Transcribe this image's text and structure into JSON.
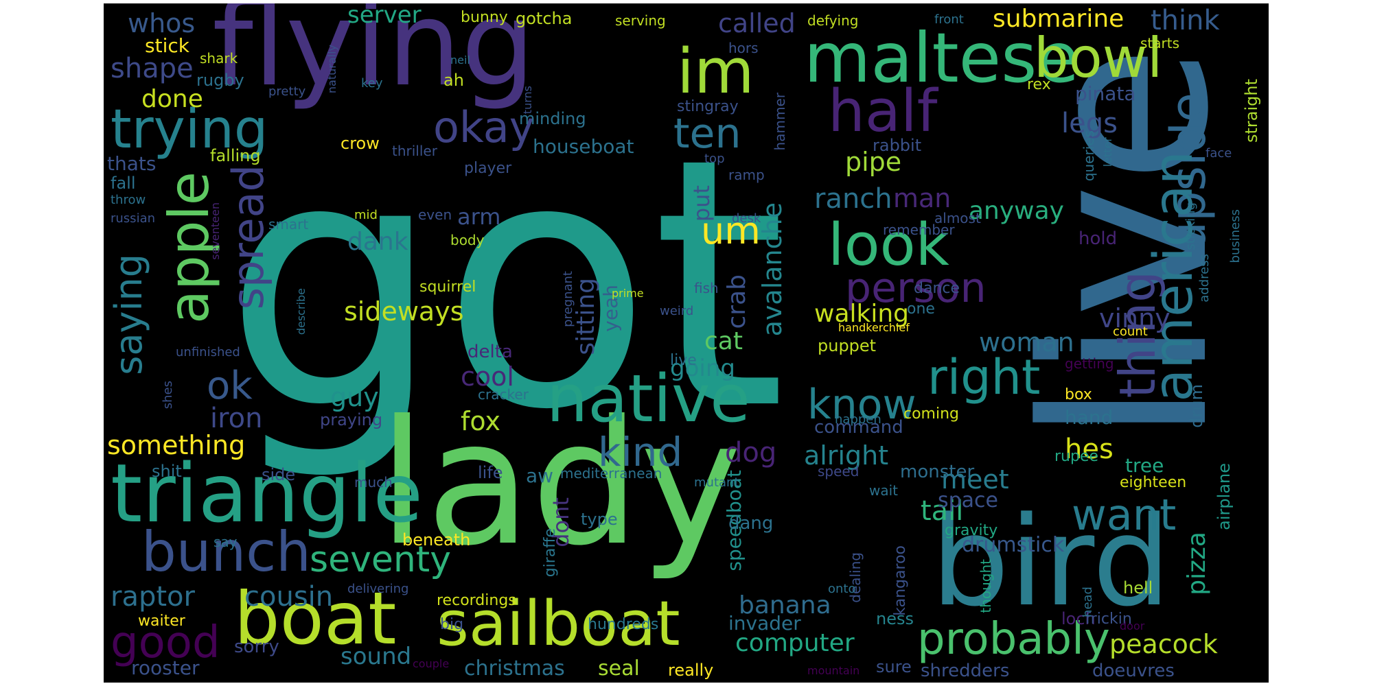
{
  "words": [
    {
      "text": "got",
      "color": "#1f9a8a"
    },
    {
      "text": "live",
      "color": "#31688e"
    },
    {
      "text": "lady",
      "color": "#5ec962"
    },
    {
      "text": "flying",
      "color": "#46337e"
    },
    {
      "text": "bird",
      "color": "#2b7d8e"
    },
    {
      "text": "triangle",
      "color": "#25a085"
    },
    {
      "text": "maltese",
      "color": "#35b779"
    },
    {
      "text": "sailboat",
      "color": "#b5de2b"
    },
    {
      "text": "boat",
      "color": "#b5de2b"
    },
    {
      "text": "native",
      "color": "#25a085"
    },
    {
      "text": "im",
      "color": "#a0da39"
    },
    {
      "text": "half",
      "color": "#482475"
    },
    {
      "text": "bowl",
      "color": "#a0da39"
    },
    {
      "text": "trying",
      "color": "#26828e"
    },
    {
      "text": "look",
      "color": "#35b779"
    },
    {
      "text": "upside",
      "color": "#31688e"
    },
    {
      "text": "thing",
      "color": "#414487"
    },
    {
      "text": "american",
      "color": "#2a788e"
    },
    {
      "text": "apple",
      "color": "#5ec962"
    },
    {
      "text": "spread",
      "color": "#414487"
    },
    {
      "text": "bunch",
      "color": "#3b528b"
    },
    {
      "text": "probably",
      "color": "#4ac16d"
    },
    {
      "text": "okay",
      "color": "#414487"
    },
    {
      "text": "person",
      "color": "#482475"
    },
    {
      "text": "right",
      "color": "#21918c"
    },
    {
      "text": "know",
      "color": "#26828e"
    },
    {
      "text": "want",
      "color": "#287c8e"
    },
    {
      "text": "good",
      "color": "#440154"
    },
    {
      "text": "ten",
      "color": "#2c728e"
    },
    {
      "text": "kind",
      "color": "#31688e"
    },
    {
      "text": "seventy",
      "color": "#2fb47c"
    },
    {
      "text": "submarine",
      "color": "#fde725"
    },
    {
      "text": "um",
      "color": "#fde725"
    },
    {
      "text": "server",
      "color": "#22a884"
    },
    {
      "text": "called",
      "color": "#414487"
    },
    {
      "text": "think",
      "color": "#365c8d"
    },
    {
      "text": "whos",
      "color": "#38598c"
    },
    {
      "text": "shape",
      "color": "#3e4a89"
    },
    {
      "text": "done",
      "color": "#c8e020"
    },
    {
      "text": "stick",
      "color": "#fde725"
    },
    {
      "text": "saying",
      "color": "#287d8e"
    },
    {
      "text": "ok",
      "color": "#38598c"
    },
    {
      "text": "iron",
      "color": "#3e4989"
    },
    {
      "text": "something",
      "color": "#fde725"
    },
    {
      "text": "raptor",
      "color": "#2d708e"
    },
    {
      "text": "cousin",
      "color": "#2d708e"
    },
    {
      "text": "sideways",
      "color": "#c2df23"
    },
    {
      "text": "walking",
      "color": "#c8e020"
    },
    {
      "text": "ranch",
      "color": "#2c728e"
    },
    {
      "text": "man",
      "color": "#482878"
    },
    {
      "text": "pipe",
      "color": "#a0da39"
    },
    {
      "text": "anyway",
      "color": "#29af7f"
    },
    {
      "text": "legs",
      "color": "#3b528b"
    },
    {
      "text": "pinata",
      "color": "#3b528b"
    },
    {
      "text": "vinny",
      "color": "#404688"
    },
    {
      "text": "woman",
      "color": "#2d708e"
    },
    {
      "text": "hes",
      "color": "#d8e219"
    },
    {
      "text": "pizza",
      "color": "#22a884"
    },
    {
      "text": "peacock",
      "color": "#b5de2b"
    },
    {
      "text": "tail",
      "color": "#2fb47c"
    },
    {
      "text": "meet",
      "color": "#287c8e"
    },
    {
      "text": "space",
      "color": "#3b528b"
    },
    {
      "text": "drumstick",
      "color": "#38588c"
    },
    {
      "text": "alright",
      "color": "#25838e"
    },
    {
      "text": "dog",
      "color": "#482475"
    },
    {
      "text": "fox",
      "color": "#addc30"
    },
    {
      "text": "guy",
      "color": "#20928c"
    },
    {
      "text": "cool",
      "color": "#482878"
    },
    {
      "text": "cat",
      "color": "#5ec962"
    },
    {
      "text": "crab",
      "color": "#3b528b"
    },
    {
      "text": "avalanche",
      "color": "#24868e"
    },
    {
      "text": "going",
      "color": "#238a8d"
    },
    {
      "text": "sitting",
      "color": "#3b528b"
    },
    {
      "text": "yeah",
      "color": "#34608d"
    },
    {
      "text": "dank",
      "color": "#2a768e"
    },
    {
      "text": "arm",
      "color": "#3b528b"
    },
    {
      "text": "put",
      "color": "#3b528b"
    },
    {
      "text": "banana",
      "color": "#2f6c8e"
    },
    {
      "text": "computer",
      "color": "#22a884"
    },
    {
      "text": "invader",
      "color": "#2c738e"
    },
    {
      "text": "sound",
      "color": "#2a788e"
    },
    {
      "text": "christmas",
      "color": "#2c728e"
    },
    {
      "text": "rooster",
      "color": "#3b528b"
    },
    {
      "text": "sorry",
      "color": "#3e4a89"
    },
    {
      "text": "waiter",
      "color": "#fde725"
    },
    {
      "text": "recordings",
      "color": "#d2e21b"
    },
    {
      "text": "hundreds",
      "color": "#2a788e"
    },
    {
      "text": "seal",
      "color": "#a8db34"
    },
    {
      "text": "really",
      "color": "#fde725"
    },
    {
      "text": "sure",
      "color": "#3b528b"
    },
    {
      "text": "shredders",
      "color": "#3b528b"
    },
    {
      "text": "doeuvres",
      "color": "#3b528b"
    },
    {
      "text": "loch",
      "color": "#482475"
    },
    {
      "text": "frickin",
      "color": "#3b528b"
    },
    {
      "text": "ness",
      "color": "#25848e"
    },
    {
      "text": "hell",
      "color": "#a8db34"
    },
    {
      "text": "monster",
      "color": "#2e6e8e"
    },
    {
      "text": "tree",
      "color": "#22a884"
    },
    {
      "text": "eighteen",
      "color": "#d8e219"
    },
    {
      "text": "airplane",
      "color": "#1f998a"
    },
    {
      "text": "hand",
      "color": "#2c728e"
    },
    {
      "text": "box",
      "color": "#fde725"
    },
    {
      "text": "drum",
      "color": "#2f6c8e"
    },
    {
      "text": "rupee",
      "color": "#22a884"
    },
    {
      "text": "coming",
      "color": "#d2e21b"
    },
    {
      "text": "command",
      "color": "#3b528b"
    },
    {
      "text": "speedboat",
      "color": "#21918c"
    },
    {
      "text": "dont",
      "color": "#46337e"
    },
    {
      "text": "dang",
      "color": "#2c728e"
    },
    {
      "text": "type",
      "color": "#2c728e"
    },
    {
      "text": "beneath",
      "color": "#fde725"
    },
    {
      "text": "giraffe",
      "color": "#2a768e"
    },
    {
      "text": "aw",
      "color": "#2c728e"
    },
    {
      "text": "life",
      "color": "#3b528b"
    },
    {
      "text": "mediterranean",
      "color": "#2c728e"
    },
    {
      "text": "mutant",
      "color": "#2c728e"
    },
    {
      "text": "speed",
      "color": "#3e4989"
    },
    {
      "text": "wait",
      "color": "#2c728e"
    },
    {
      "text": "happen",
      "color": "#2c728e"
    },
    {
      "text": "kangaroo",
      "color": "#3b528b"
    },
    {
      "text": "gravity",
      "color": "#22a884"
    },
    {
      "text": "thought",
      "color": "#22a884"
    },
    {
      "text": "dealing",
      "color": "#3b528b"
    },
    {
      "text": "onto",
      "color": "#2c728e"
    },
    {
      "text": "head",
      "color": "#2c728e"
    },
    {
      "text": "door",
      "color": "#440154"
    },
    {
      "text": "delta",
      "color": "#482878"
    },
    {
      "text": "live",
      "color": "#2c728e"
    },
    {
      "text": "cracker",
      "color": "#2c728e"
    },
    {
      "text": "praying",
      "color": "#404688"
    },
    {
      "text": "shes",
      "color": "#3b528b"
    },
    {
      "text": "side",
      "color": "#3b528b"
    },
    {
      "text": "shit",
      "color": "#2c728e"
    },
    {
      "text": "much",
      "color": "#3b528b"
    },
    {
      "text": "say",
      "color": "#2c728e"
    },
    {
      "text": "big",
      "color": "#3b528b"
    },
    {
      "text": "couple",
      "color": "#440154"
    },
    {
      "text": "mountain",
      "color": "#440154"
    },
    {
      "text": "delivering",
      "color": "#3b528b"
    },
    {
      "text": "unfinished",
      "color": "#3b528b"
    },
    {
      "text": "describe",
      "color": "#2c728e"
    },
    {
      "text": "seventeen",
      "color": "#482475"
    },
    {
      "text": "smart",
      "color": "#2c728e"
    },
    {
      "text": "russian",
      "color": "#3b528b"
    },
    {
      "text": "throw",
      "color": "#2c728e"
    },
    {
      "text": "fall",
      "color": "#2c728e"
    },
    {
      "text": "thats",
      "color": "#3b528b"
    },
    {
      "text": "falling",
      "color": "#b5de2b"
    },
    {
      "text": "thriller",
      "color": "#3b528b"
    },
    {
      "text": "crow",
      "color": "#fde725"
    },
    {
      "text": "houseboat",
      "color": "#2c728e"
    },
    {
      "text": "minding",
      "color": "#2c728e"
    },
    {
      "text": "player",
      "color": "#3b528b"
    },
    {
      "text": "even",
      "color": "#3b528b"
    },
    {
      "text": "body",
      "color": "#addc30"
    },
    {
      "text": "mid",
      "color": "#c2df23"
    },
    {
      "text": "squirrel",
      "color": "#c2df23"
    },
    {
      "text": "pregnant",
      "color": "#3b528b"
    },
    {
      "text": "prime",
      "color": "#c2df23"
    },
    {
      "text": "weird",
      "color": "#3b528b"
    },
    {
      "text": "fish",
      "color": "#3b528b"
    },
    {
      "text": "dance",
      "color": "#3b528b"
    },
    {
      "text": "one",
      "color": "#2c728e"
    },
    {
      "text": "handkerchief",
      "color": "#fde725"
    },
    {
      "text": "puppet",
      "color": "#c2df23"
    },
    {
      "text": "count",
      "color": "#fde725"
    },
    {
      "text": "getting",
      "color": "#440154"
    },
    {
      "text": "ramp",
      "color": "#3b528b"
    },
    {
      "text": "desk",
      "color": "#3b528b"
    },
    {
      "text": "remember",
      "color": "#3b528b"
    },
    {
      "text": "almost",
      "color": "#3b528b"
    },
    {
      "text": "hold",
      "color": "#482475"
    },
    {
      "text": "sticking",
      "color": "#2c728e"
    },
    {
      "text": "address",
      "color": "#2c728e"
    },
    {
      "text": "business",
      "color": "#2c728e"
    },
    {
      "text": "straight",
      "color": "#addc30"
    },
    {
      "text": "queries",
      "color": "#2c728e"
    },
    {
      "text": "letter",
      "color": "#2c728e"
    },
    {
      "text": "face",
      "color": "#3b528b"
    },
    {
      "text": "rabbit",
      "color": "#3b528b"
    },
    {
      "text": "stingray",
      "color": "#3b528b"
    },
    {
      "text": "hammer",
      "color": "#3b528b"
    },
    {
      "text": "top",
      "color": "#3b528b"
    },
    {
      "text": "rex",
      "color": "#c2df23"
    },
    {
      "text": "turns",
      "color": "#3b528b"
    },
    {
      "text": "neil",
      "color": "#2c728e"
    },
    {
      "text": "key",
      "color": "#2c728e"
    },
    {
      "text": "pretty",
      "color": "#3b528b"
    },
    {
      "text": "naturally",
      "color": "#3b528b"
    },
    {
      "text": "shark",
      "color": "#c2df23"
    },
    {
      "text": "rugby",
      "color": "#2c728e"
    },
    {
      "text": "ah",
      "color": "#c2df23"
    },
    {
      "text": "hors",
      "color": "#3b528b"
    },
    {
      "text": "serving",
      "color": "#c2df23"
    },
    {
      "text": "defying",
      "color": "#c2df23"
    },
    {
      "text": "front",
      "color": "#2c728e"
    },
    {
      "text": "starts",
      "color": "#c2df23"
    },
    {
      "text": "bunny",
      "color": "#c2df23"
    },
    {
      "text": "gotcha",
      "color": "#c2df23"
    }
  ]
}
